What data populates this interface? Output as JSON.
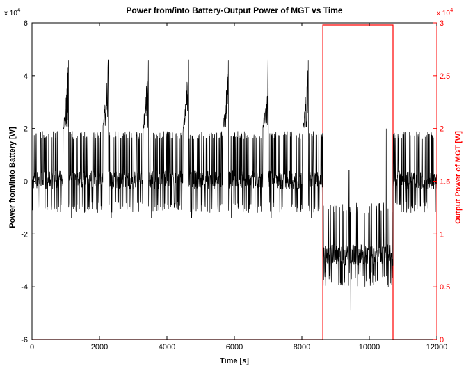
{
  "chart_data": {
    "type": "line",
    "title": "Power from/into Battery-Output Power of MGT vs Time",
    "xlabel": "Time [s]",
    "ylabel_left": "Power from/into Battery [W]",
    "ylabel_right": "Output Power of MGT [W]",
    "xlim": [
      0,
      12000
    ],
    "ylim_left": [
      -60000,
      60000
    ],
    "ylim_right": [
      0,
      30000
    ],
    "xticks": [
      "0",
      "2000",
      "4000",
      "6000",
      "8000",
      "10000",
      "12000"
    ],
    "yticks_left": [
      "-6",
      "-4",
      "-2",
      "0",
      "2",
      "4",
      "6"
    ],
    "yticks_right": [
      "0",
      "0.5",
      "1",
      "1.5",
      "2",
      "2.5",
      "3"
    ],
    "exponent_left": "x 10",
    "exponent_left_power": "4",
    "exponent_right": "x 10",
    "exponent_right_power": "4",
    "grid": false,
    "colors": {
      "left_series": "#000000",
      "right_series": "#ff0000"
    },
    "series": [
      {
        "axis": "left",
        "cycle_period": 1180,
        "peak_times": [
          1080,
          2260,
          3450,
          4640,
          5820,
          7000,
          8190
        ],
        "peak_value": 46000,
        "baseline_range": [
          -8000,
          19000
        ],
        "dip_min": -14000,
        "battery_charging_interval": [
          8620,
          10700
        ],
        "charging_range": [
          -34000,
          -8000
        ],
        "charging_peak": 20000,
        "charging_min": -40000
      },
      {
        "axis": "right",
        "x": [
          0,
          8620,
          8620,
          10700,
          10700,
          12000
        ],
        "y": [
          0,
          0,
          29800,
          29800,
          0,
          0
        ]
      }
    ]
  }
}
